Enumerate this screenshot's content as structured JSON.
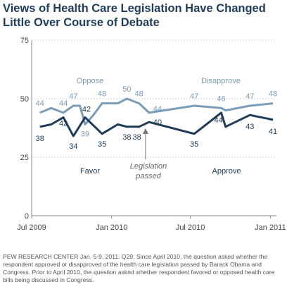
{
  "title": "Views of Health Care Legislation Have Changed Little Over Course of Debate",
  "footer": "PEW RESEARCH CENTER Jan. 5-9, 2011. Q29. Since April 2010, the question asked whether the respondent approved or disapproved of the health care legislation passed by Barack Obama and Congress. Prior to April 2010, the question asked whether respondent favored or opposed health care bills being discussed in Congress.",
  "colors": {
    "dark": "#1f3b57",
    "light": "#7b9cb6",
    "axis": "#888888",
    "grid": "#cfd8e0",
    "arrow": "#777777"
  },
  "chart_data": {
    "type": "line",
    "xlim": [
      "2009-07-01",
      "2011-01-15"
    ],
    "ylim": [
      0,
      75
    ],
    "yticks": [
      0,
      25,
      50,
      75
    ],
    "xticks": [
      {
        "date": "2009-07-01",
        "label": "Jul 2009"
      },
      {
        "date": "2010-01-01",
        "label": "Jan 2010"
      },
      {
        "date": "2010-07-01",
        "label": "Jul 2010"
      },
      {
        "date": "2011-01-01",
        "label": "Jan 2011"
      }
    ],
    "grid": "dotted-horizontal",
    "series": [
      {
        "role": "light",
        "points": [
          {
            "x": "2009-07-20",
            "y": 44,
            "label": "44"
          },
          {
            "x": "2009-08-15",
            "y": 46
          },
          {
            "x": "2009-09-12",
            "y": 44,
            "label": "44"
          },
          {
            "x": "2009-10-05",
            "y": 47,
            "label": "47"
          },
          {
            "x": "2009-10-20",
            "y": 47
          },
          {
            "x": "2009-11-01",
            "y": 39,
            "label": "39"
          },
          {
            "x": "2009-11-20",
            "y": 43
          },
          {
            "x": "2009-12-10",
            "y": 48,
            "label": "48"
          },
          {
            "x": "2010-01-15",
            "y": 48
          },
          {
            "x": "2010-02-05",
            "y": 50,
            "label": "50"
          },
          {
            "x": "2010-03-05",
            "y": 48,
            "label": "48"
          },
          {
            "x": "2010-03-28",
            "y": 44,
            "label": "44"
          },
          {
            "x": "2010-07-10",
            "y": 47,
            "label": "47"
          },
          {
            "x": "2010-09-10",
            "y": 46,
            "label": "46"
          },
          {
            "x": "2010-09-20",
            "y": 45
          },
          {
            "x": "2010-11-15",
            "y": 47,
            "label": "47"
          },
          {
            "x": "2011-01-07",
            "y": 48,
            "label": "48"
          }
        ]
      },
      {
        "role": "dark",
        "points": [
          {
            "x": "2009-07-20",
            "y": 38,
            "label": "38"
          },
          {
            "x": "2009-08-15",
            "y": 39
          },
          {
            "x": "2009-09-12",
            "y": 42,
            "label": "42"
          },
          {
            "x": "2009-10-05",
            "y": 34,
            "label": "34"
          },
          {
            "x": "2009-11-01",
            "y": 42,
            "label": "42"
          },
          {
            "x": "2009-12-10",
            "y": 35,
            "label": "35"
          },
          {
            "x": "2010-01-15",
            "y": 39
          },
          {
            "x": "2010-02-05",
            "y": 38,
            "label": "38"
          },
          {
            "x": "2010-03-05",
            "y": 38,
            "label": "38"
          },
          {
            "x": "2010-03-28",
            "y": 40,
            "label": "40"
          },
          {
            "x": "2010-07-10",
            "y": 35,
            "label": "35"
          },
          {
            "x": "2010-09-10",
            "y": 44,
            "label": "44"
          },
          {
            "x": "2010-09-20",
            "y": 38
          },
          {
            "x": "2010-11-15",
            "y": 43,
            "label": "43"
          },
          {
            "x": "2011-01-07",
            "y": 41,
            "label": "41"
          }
        ]
      }
    ],
    "annotations": [
      {
        "id": "oppose",
        "text": "Oppose",
        "color": "light"
      },
      {
        "id": "disapprove",
        "text": "Disapprove",
        "color": "light"
      },
      {
        "id": "favor",
        "text": "Favor",
        "color": "dark"
      },
      {
        "id": "approve",
        "text": "Approve",
        "color": "dark"
      },
      {
        "id": "legislation",
        "text": "Legislation",
        "color": "italic"
      },
      {
        "id": "passed",
        "text": "passed",
        "color": "italic"
      }
    ]
  }
}
